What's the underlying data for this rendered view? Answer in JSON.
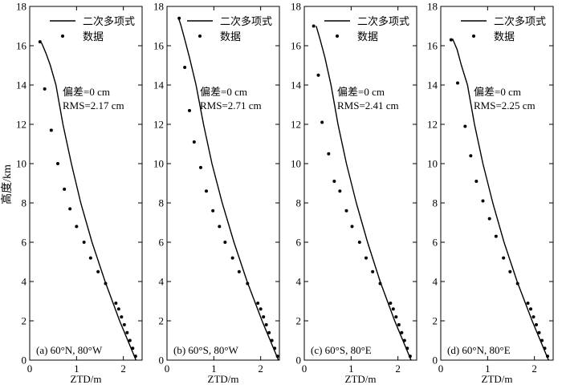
{
  "figure": {
    "ylabel": "高度/km",
    "xlabel": "ZTD/m",
    "legend": {
      "line": "二次多项式",
      "points": "数据"
    },
    "yticks": [
      "0",
      "2",
      "4",
      "6",
      "8",
      "10",
      "12",
      "14",
      "16",
      "18"
    ],
    "xticks": [
      "0",
      "1",
      "2"
    ]
  },
  "chart_data": [
    {
      "type": "line",
      "label": "(a) 60°N, 80°W",
      "stats": {
        "bias": "偏差=0 cm",
        "rms": "RMS=2.17 cm"
      },
      "xlim": [
        0,
        2.4
      ],
      "ylim": [
        0,
        18
      ],
      "grid": false,
      "legend_position": "top-right",
      "series": [
        {
          "name": "二次多项式",
          "kind": "line",
          "x": [
            2.27,
            1.92,
            1.61,
            1.33,
            1.09,
            0.89,
            0.71,
            0.56,
            0.44,
            0.35,
            0.28,
            0.26,
            0.25
          ],
          "y": [
            0,
            2,
            4,
            6,
            8,
            10,
            12,
            14,
            15,
            15.6,
            16.0,
            16.1,
            16.15
          ]
        },
        {
          "name": "数据",
          "kind": "scatter",
          "x": [
            2.26,
            2.2,
            2.14,
            2.08,
            2.02,
            1.96,
            1.9,
            1.84,
            1.62,
            1.46,
            1.3,
            1.16,
            1.0,
            0.86,
            0.74,
            0.6,
            0.46,
            0.32,
            0.22
          ],
          "y": [
            0.2,
            0.6,
            1.0,
            1.4,
            1.8,
            2.2,
            2.6,
            2.9,
            3.9,
            4.5,
            5.2,
            6.0,
            6.8,
            7.7,
            8.7,
            10.0,
            11.7,
            13.8,
            16.2
          ]
        }
      ]
    },
    {
      "type": "line",
      "label": "(b) 60°S, 80°W",
      "stats": {
        "bias": "偏差=0 cm",
        "rms": "RMS=2.71 cm"
      },
      "xlim": [
        0,
        2.4
      ],
      "ylim": [
        0,
        18
      ],
      "grid": false,
      "legend_position": "top-right",
      "series": [
        {
          "name": "二次多项式",
          "kind": "line",
          "x": [
            2.38,
            2.03,
            1.71,
            1.43,
            1.18,
            0.96,
            0.78,
            0.62,
            0.48,
            0.37,
            0.29,
            0.26,
            0.25
          ],
          "y": [
            0,
            2,
            4,
            6,
            8,
            10,
            12,
            14,
            15.4,
            16.4,
            17.1,
            17.3,
            17.4
          ]
        },
        {
          "name": "数据",
          "kind": "scatter",
          "x": [
            2.36,
            2.3,
            2.24,
            2.18,
            2.12,
            2.06,
            2.0,
            1.94,
            1.72,
            1.54,
            1.4,
            1.24,
            1.12,
            0.98,
            0.84,
            0.72,
            0.58,
            0.48,
            0.38,
            0.26
          ],
          "y": [
            0.2,
            0.6,
            1.0,
            1.4,
            1.8,
            2.2,
            2.6,
            2.9,
            3.9,
            4.5,
            5.2,
            6.0,
            6.8,
            7.6,
            8.6,
            9.8,
            11.1,
            12.7,
            14.9,
            17.4
          ]
        }
      ]
    },
    {
      "type": "line",
      "label": "(c) 60°S, 80°E",
      "stats": {
        "bias": "偏差=0 cm",
        "rms": "RMS=2.41 cm"
      },
      "xlim": [
        0,
        2.4
      ],
      "ylim": [
        0,
        18
      ],
      "grid": false,
      "legend_position": "top-right",
      "series": [
        {
          "name": "二次多项式",
          "kind": "line",
          "x": [
            2.28,
            1.93,
            1.62,
            1.35,
            1.11,
            0.9,
            0.72,
            0.57,
            0.44,
            0.34,
            0.28,
            0.26,
            0.25
          ],
          "y": [
            0,
            2,
            4,
            6,
            8,
            10,
            12,
            14,
            15.4,
            16.3,
            16.8,
            16.95,
            17.0
          ]
        },
        {
          "name": "数据",
          "kind": "scatter",
          "x": [
            2.26,
            2.2,
            2.14,
            2.08,
            2.02,
            1.96,
            1.9,
            1.84,
            1.62,
            1.46,
            1.32,
            1.18,
            1.02,
            0.9,
            0.76,
            0.64,
            0.52,
            0.38,
            0.3,
            0.2
          ],
          "y": [
            0.2,
            0.6,
            1.0,
            1.4,
            1.8,
            2.2,
            2.6,
            2.9,
            3.9,
            4.5,
            5.2,
            6.0,
            6.8,
            7.6,
            8.6,
            9.1,
            10.5,
            12.1,
            14.5,
            17.0
          ]
        }
      ]
    },
    {
      "type": "line",
      "label": "(d) 60°N, 80°E",
      "stats": {
        "bias": "偏差=0 cm",
        "rms": "RMS=2.25 cm"
      },
      "xlim": [
        0,
        2.4
      ],
      "ylim": [
        0,
        18
      ],
      "grid": false,
      "legend_position": "top-right",
      "series": [
        {
          "name": "二次多项式",
          "kind": "line",
          "x": [
            2.3,
            1.95,
            1.63,
            1.35,
            1.11,
            0.9,
            0.72,
            0.57,
            0.44,
            0.35,
            0.28,
            0.26,
            0.25
          ],
          "y": [
            0,
            2,
            4,
            6,
            8,
            10,
            12,
            14,
            15.0,
            15.8,
            16.2,
            16.3,
            16.35
          ]
        },
        {
          "name": "数据",
          "kind": "scatter",
          "x": [
            2.28,
            2.22,
            2.16,
            2.1,
            2.04,
            1.98,
            1.92,
            1.86,
            1.64,
            1.48,
            1.34,
            1.18,
            1.04,
            0.9,
            0.76,
            0.64,
            0.52,
            0.36,
            0.22
          ],
          "y": [
            0.2,
            0.6,
            1.0,
            1.4,
            1.8,
            2.2,
            2.6,
            2.9,
            3.9,
            4.5,
            5.2,
            6.3,
            7.2,
            8.1,
            9.1,
            10.4,
            11.9,
            14.1,
            16.3
          ]
        }
      ]
    }
  ]
}
